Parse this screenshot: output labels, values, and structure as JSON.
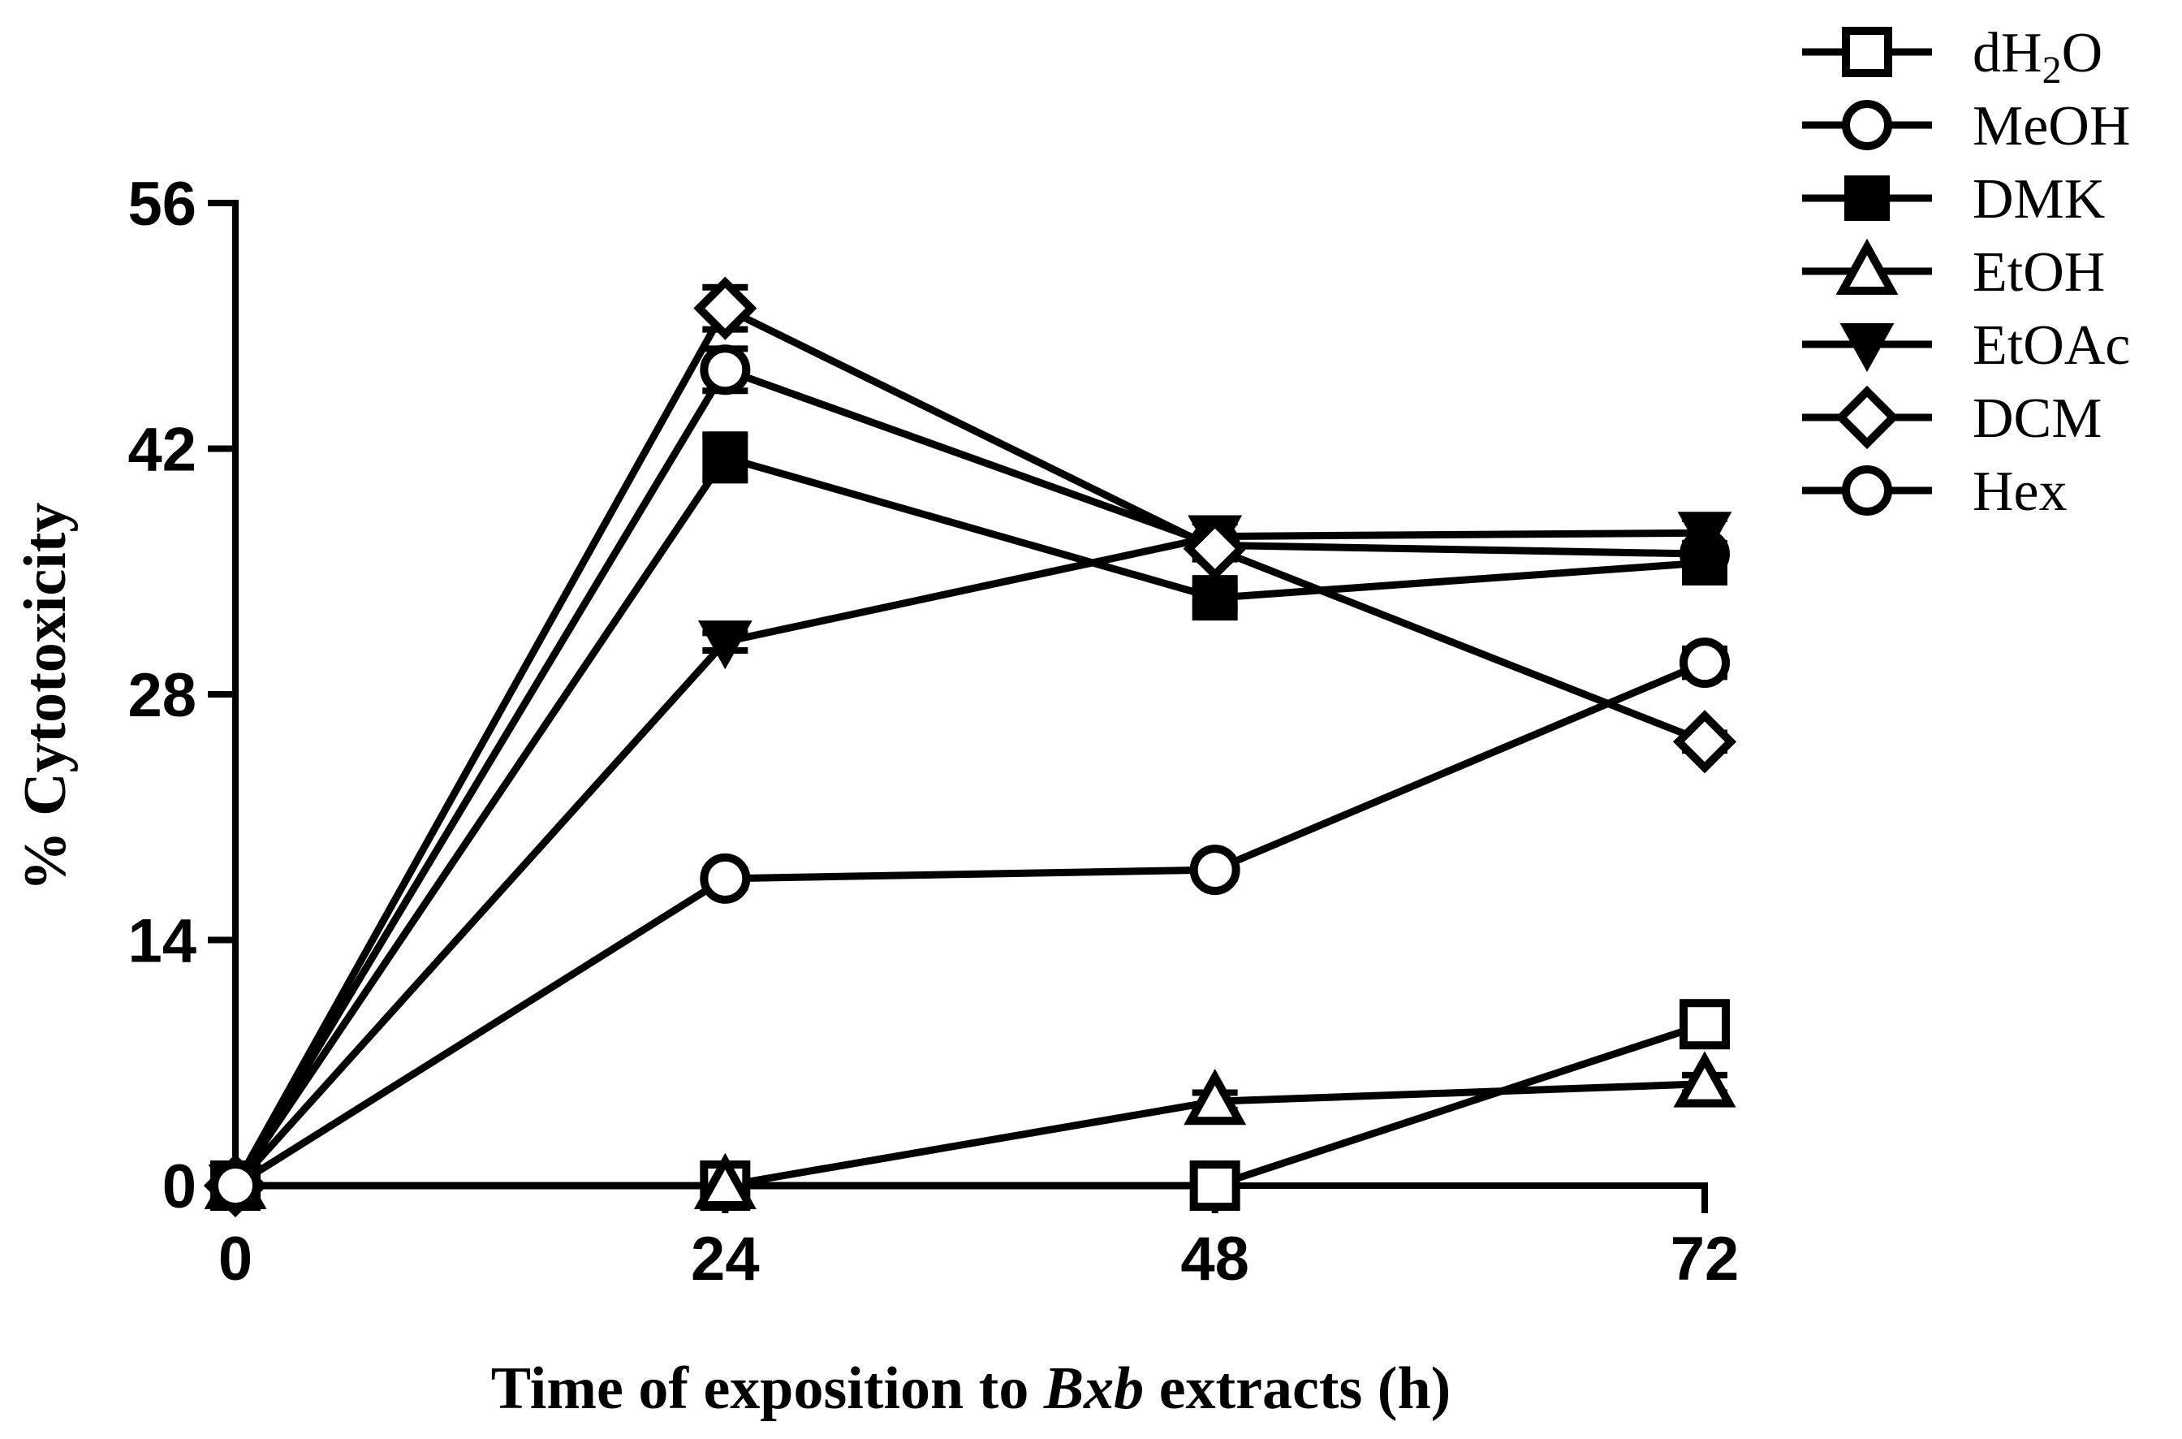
{
  "chart_data": {
    "type": "line",
    "title": "",
    "xlabel": "Time of exposition to Bxb extracts (h)",
    "xlabel_parts": [
      {
        "text": "Time of exposition to ",
        "italic": false
      },
      {
        "text": "Bxb",
        "italic": true
      },
      {
        "text": " extracts (h)",
        "italic": false
      }
    ],
    "ylabel": "% Cytotoxicity",
    "x": [
      0,
      24,
      48,
      72
    ],
    "xlim": [
      0,
      72
    ],
    "ylim": [
      0,
      56
    ],
    "xticks": [
      0,
      24,
      48,
      72
    ],
    "yticks": [
      0,
      14,
      28,
      42,
      56
    ],
    "grid": false,
    "legend_position": "top-right",
    "series": [
      {
        "name": "dH2O",
        "legend": {
          "pre": "dH",
          "sub": "2",
          "post": "O"
        },
        "marker": "square-open",
        "values": [
          0,
          0,
          0,
          9.2
        ],
        "errors": [
          0,
          0,
          0,
          0.8
        ]
      },
      {
        "name": "MeOH",
        "legend": {
          "pre": "MeOH",
          "sub": "",
          "post": ""
        },
        "marker": "circle-open",
        "values": [
          0,
          46.5,
          36.5,
          36.0
        ],
        "errors": [
          0,
          1.2,
          0.5,
          0.5
        ]
      },
      {
        "name": "DMK",
        "legend": {
          "pre": "DMK",
          "sub": "",
          "post": ""
        },
        "marker": "square-filled",
        "values": [
          0,
          41.5,
          33.5,
          35.5
        ],
        "errors": [
          0,
          1.3,
          0.6,
          0.6
        ]
      },
      {
        "name": "EtOH",
        "legend": {
          "pre": "EtOH",
          "sub": "",
          "post": ""
        },
        "marker": "triangle-open",
        "values": [
          0,
          0,
          4.8,
          5.8
        ],
        "errors": [
          0,
          0,
          0.5,
          0.5
        ]
      },
      {
        "name": "EtOAc",
        "legend": {
          "pre": "EtOAc",
          "sub": "",
          "post": ""
        },
        "marker": "triangle-down-filled",
        "values": [
          0,
          31.0,
          37.0,
          37.2
        ],
        "errors": [
          0,
          0.5,
          0.8,
          0.8
        ]
      },
      {
        "name": "DCM",
        "legend": {
          "pre": "DCM",
          "sub": "",
          "post": ""
        },
        "marker": "diamond-open",
        "values": [
          0,
          50.0,
          36.3,
          25.3
        ],
        "errors": [
          0,
          1.2,
          0.6,
          0.5
        ]
      },
      {
        "name": "Hex",
        "legend": {
          "pre": "Hex",
          "sub": "",
          "post": ""
        },
        "marker": "circle-open",
        "values": [
          0,
          17.5,
          18.0,
          29.8
        ],
        "errors": [
          0,
          0.5,
          0.5,
          0.8
        ]
      }
    ],
    "colors": {
      "line": "#000000",
      "background": "#ffffff"
    }
  }
}
